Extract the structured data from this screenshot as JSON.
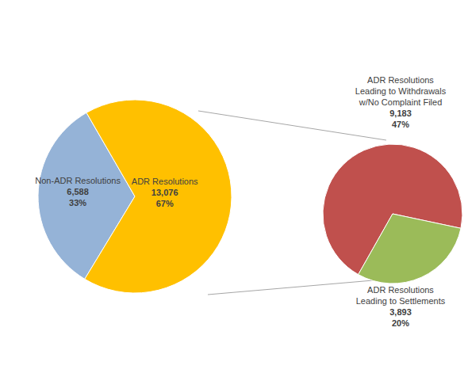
{
  "chart_data": [
    {
      "type": "pie",
      "categories": [
        "Non-ADR Resolutions",
        "ADR Resolutions"
      ],
      "values": [
        33,
        67
      ],
      "value_labels": [
        "33%",
        "67%"
      ],
      "counts": [
        6588,
        13076
      ],
      "colors": [
        "#95B3D7",
        "#FFC000"
      ]
    },
    {
      "type": "pie",
      "categories": [
        "ADR Resolutions Leading to Withdrawals w/No Complaint Filed",
        "ADR Resolutions Leading to Settlements"
      ],
      "values": [
        47,
        20
      ],
      "value_labels": [
        "47%",
        "20%"
      ],
      "counts": [
        9183,
        3893
      ],
      "colors": [
        "#C0504D",
        "#9BBB59"
      ]
    }
  ]
}
